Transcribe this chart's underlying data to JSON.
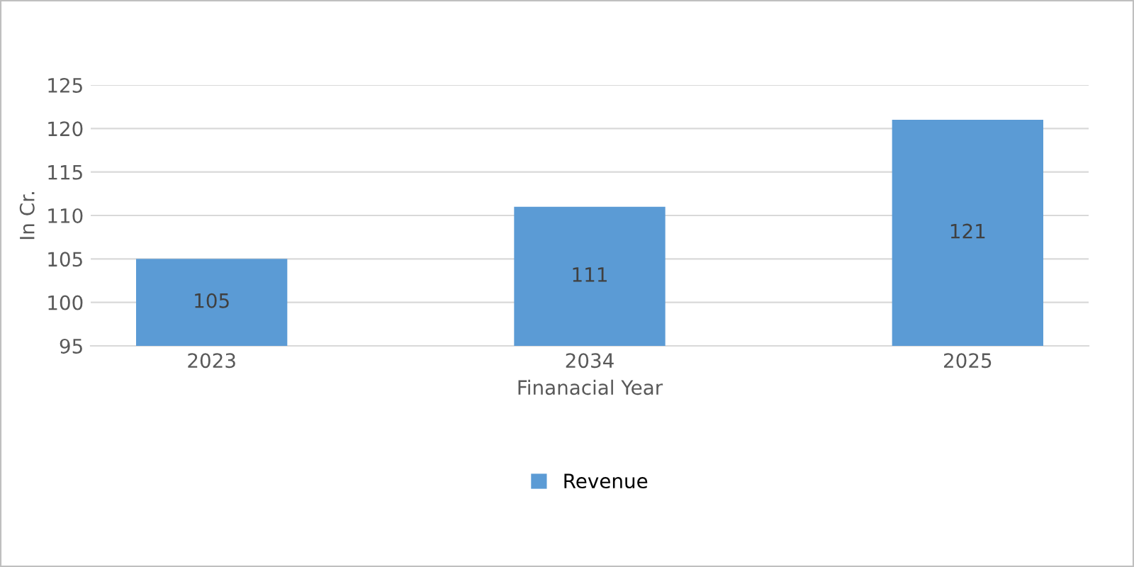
{
  "chart_data": {
    "type": "bar",
    "ylabel": "In Cr.",
    "xlabel": "Finanacial Year",
    "categories": [
      "2023",
      "2034",
      "2025"
    ],
    "series": [
      {
        "name": "Revenue",
        "color": "#5b9bd5",
        "values": [
          105,
          111,
          121
        ]
      }
    ],
    "ylim": [
      95,
      125
    ],
    "yticks": [
      95,
      100,
      105,
      110,
      115,
      120,
      125
    ],
    "grid": "y",
    "legend": "bottom",
    "data_labels": true
  }
}
